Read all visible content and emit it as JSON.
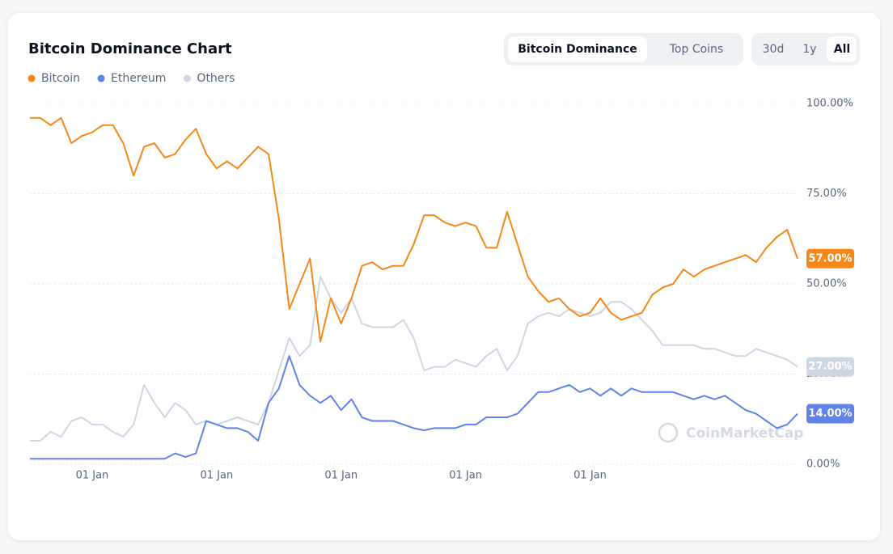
{
  "chart_data": {
    "type": "line",
    "title": "Bitcoin Dominance Chart",
    "tabs": [
      "Bitcoin Dominance",
      "Top Coins"
    ],
    "ranges": [
      "30d",
      "1y",
      "All"
    ],
    "watermark": "CoinMarketCap",
    "categories": [
      null,
      null,
      null,
      null,
      null,
      null,
      "01 Jan",
      null,
      null,
      null,
      null,
      null,
      null,
      null,
      null,
      null,
      null,
      null,
      "01 Jan",
      null,
      null,
      null,
      null,
      null,
      null,
      null,
      null,
      null,
      null,
      null,
      "01 Jan",
      null,
      null,
      null,
      null,
      null,
      null,
      null,
      null,
      null,
      null,
      null,
      "01 Jan",
      null,
      null,
      null,
      null,
      null,
      null,
      null,
      null,
      null,
      null,
      null,
      "01 Jan",
      null,
      null,
      null,
      null,
      null,
      null,
      null,
      null,
      null,
      null,
      null,
      null,
      null,
      null,
      null,
      null,
      null,
      null,
      null,
      null
    ],
    "ylim": [
      0,
      100
    ],
    "yticks": [
      {
        "value": 0,
        "label": "0.00%"
      },
      {
        "value": 25,
        "label": "25.00%"
      },
      {
        "value": 50,
        "label": "50.00%"
      },
      {
        "value": 75,
        "label": "75.00%"
      },
      {
        "value": 100,
        "label": "100.00%"
      }
    ],
    "grid": true,
    "legend": "top-left",
    "series": [
      {
        "name": "Bitcoin",
        "color": "#f68819",
        "last_label": "57.00%",
        "values": [
          96,
          96,
          94,
          96,
          89,
          91,
          92,
          94,
          94,
          89,
          80,
          88,
          89,
          85,
          86,
          90,
          93,
          86,
          82,
          84,
          82,
          85,
          88,
          86,
          68,
          43,
          50,
          57,
          34,
          46,
          39,
          46,
          55,
          56,
          54,
          55,
          55,
          61,
          69,
          69,
          67,
          66,
          67,
          66,
          60,
          60,
          70,
          61,
          52,
          48,
          45,
          46,
          43,
          41,
          42,
          46,
          42,
          40,
          41,
          42,
          47,
          49,
          50,
          54,
          52,
          54,
          55,
          56,
          57,
          58,
          56,
          60,
          63,
          65,
          57
        ]
      },
      {
        "name": "Ethereum",
        "color": "#6183e8",
        "last_label": "14.00%",
        "values": [
          1.5,
          1.5,
          1.5,
          1.5,
          1.5,
          1.5,
          1.5,
          1.5,
          1.5,
          1.5,
          1.5,
          1.5,
          1.5,
          1.5,
          3,
          2,
          3,
          12,
          11,
          10,
          10,
          9,
          6.5,
          17,
          21,
          30,
          22,
          19,
          17,
          19,
          15,
          18,
          13,
          12,
          12,
          12,
          11,
          10,
          9.4,
          10,
          10,
          10,
          11,
          11,
          13,
          13,
          13,
          14,
          17,
          20,
          20,
          21,
          22,
          20,
          21,
          19,
          21,
          19,
          21,
          20,
          20,
          20,
          20,
          19,
          18,
          19,
          18,
          19,
          17,
          15,
          14,
          12,
          10,
          11,
          14
        ]
      },
      {
        "name": "Others",
        "color": "#cfd6e3",
        "last_label": "27.00%",
        "values": [
          6.5,
          6.5,
          9,
          7.6,
          12,
          13,
          11,
          11,
          9,
          7.6,
          11,
          22,
          17,
          13,
          17,
          15,
          11,
          12,
          11,
          12,
          13,
          12,
          11,
          17,
          26,
          35,
          30,
          33,
          52,
          46,
          42,
          46,
          39,
          38,
          38,
          38,
          40,
          35,
          26,
          27,
          27,
          29,
          28,
          27,
          30,
          32,
          26,
          30,
          39,
          41,
          42,
          41,
          43,
          42,
          41,
          42,
          45,
          45,
          43,
          40,
          37,
          33,
          33,
          33,
          33,
          32,
          32,
          31,
          30,
          30,
          32,
          31,
          30,
          29,
          27
        ]
      }
    ]
  }
}
